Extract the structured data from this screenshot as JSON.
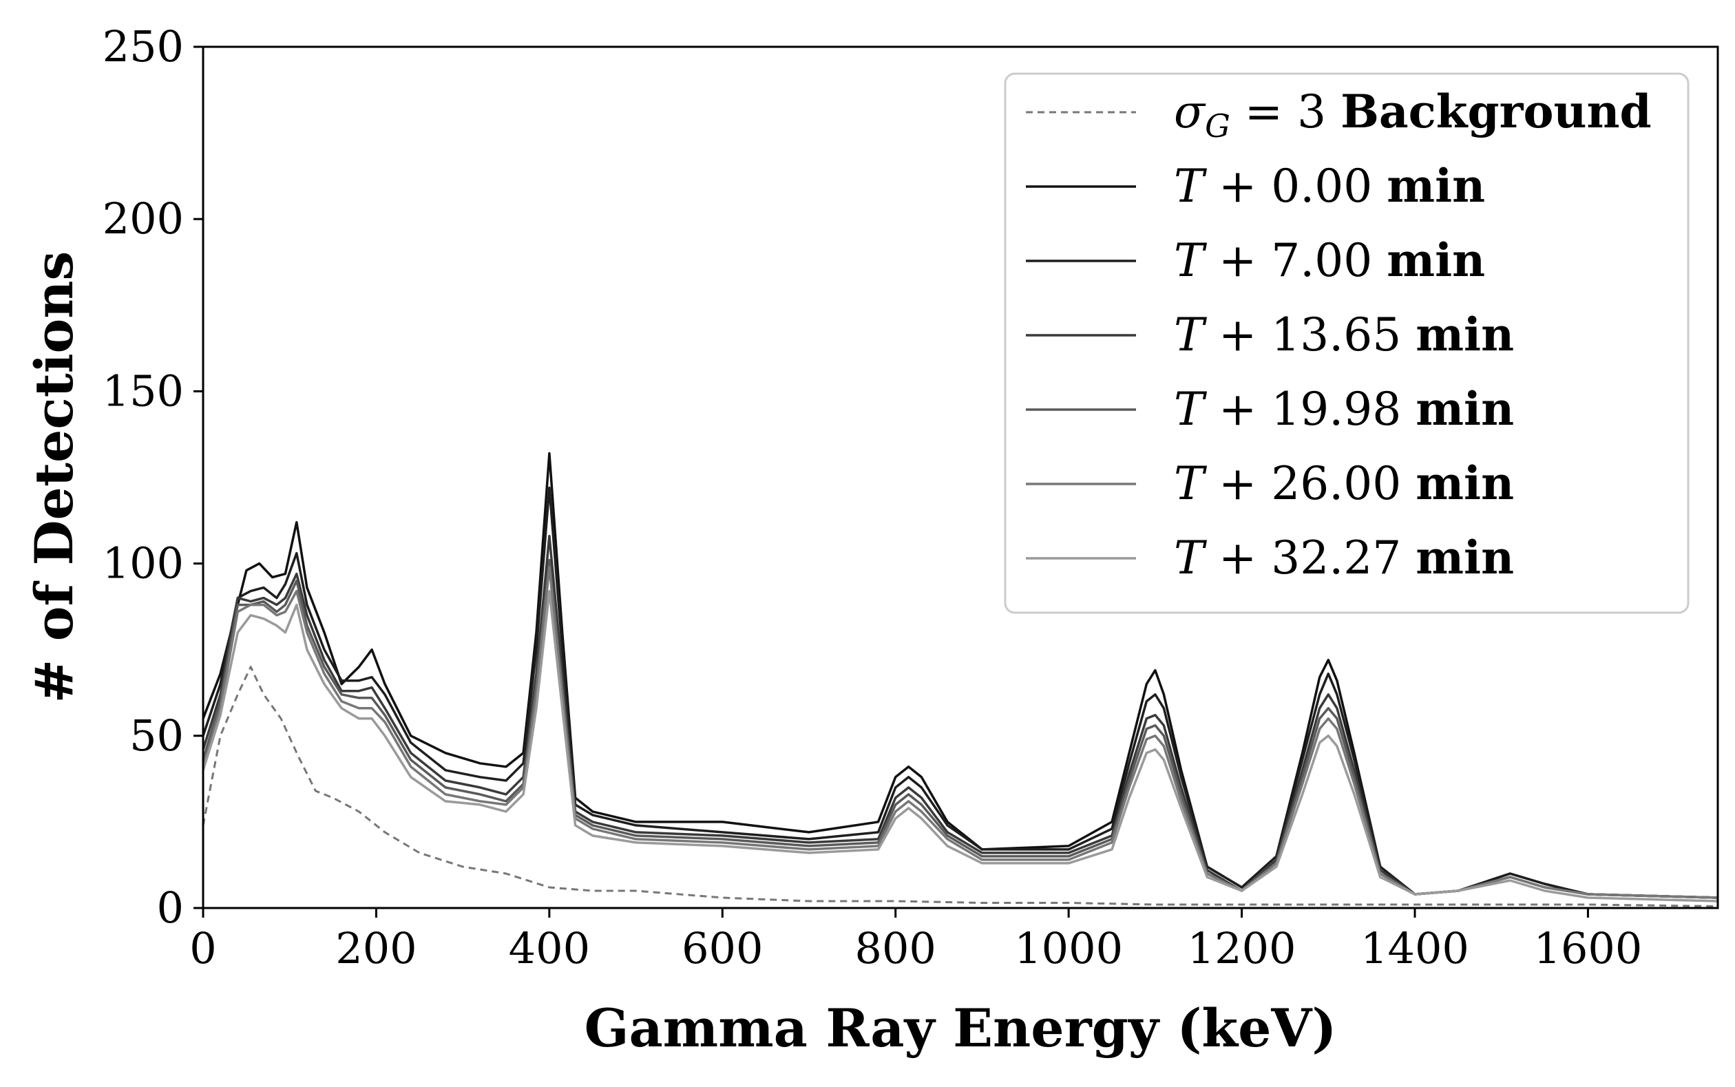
{
  "chart_data": {
    "type": "line",
    "xlabel": "Gamma Ray Energy (keV)",
    "ylabel": "# of Detections",
    "xlim": [
      0,
      1750
    ],
    "ylim": [
      0,
      250
    ],
    "xticks": [
      0,
      200,
      400,
      600,
      800,
      1000,
      1200,
      1400,
      1600
    ],
    "yticks": [
      0,
      50,
      100,
      150,
      200,
      250
    ],
    "grid": false,
    "legend_position": "top-right",
    "series": [
      {
        "name_var": "σ",
        "name_sub": "G",
        "name_rest": " = 3",
        "name_bold": "Background",
        "color": "#777777",
        "dashed": true,
        "x": [
          0,
          20,
          40,
          55,
          70,
          90,
          110,
          130,
          150,
          180,
          210,
          250,
          300,
          350,
          400,
          450,
          500,
          600,
          700,
          800,
          900,
          1000,
          1100,
          1200,
          1300,
          1400,
          1500,
          1600,
          1750
        ],
        "y": [
          24,
          50,
          62,
          70,
          62,
          55,
          44,
          34,
          32,
          28,
          22,
          16,
          12,
          10,
          6,
          5,
          5,
          3,
          2,
          2,
          1.5,
          1.5,
          1,
          1,
          1,
          1,
          1,
          1,
          0.5
        ]
      },
      {
        "name_prefix": "T",
        "name_rest": " + 0.00 ",
        "name_bold": "min",
        "color": "#111111",
        "dashed": false,
        "x": [
          0,
          20,
          40,
          50,
          65,
          80,
          95,
          108,
          120,
          140,
          160,
          180,
          195,
          210,
          240,
          280,
          320,
          350,
          370,
          385,
          400,
          415,
          430,
          450,
          500,
          600,
          700,
          780,
          800,
          815,
          830,
          860,
          900,
          1000,
          1050,
          1070,
          1090,
          1100,
          1110,
          1130,
          1160,
          1200,
          1240,
          1270,
          1290,
          1300,
          1310,
          1330,
          1360,
          1400,
          1450,
          1510,
          1550,
          1600,
          1750
        ],
        "y": [
          55,
          68,
          88,
          98,
          100,
          96,
          97,
          112,
          93,
          80,
          65,
          70,
          75,
          65,
          50,
          45,
          42,
          41,
          45,
          80,
          132,
          80,
          32,
          28,
          25,
          25,
          22,
          25,
          38,
          41,
          38,
          25,
          17,
          18,
          25,
          45,
          65,
          69,
          62,
          40,
          12,
          6,
          15,
          45,
          67,
          72,
          66,
          45,
          12,
          4,
          5,
          10,
          7,
          4,
          3
        ]
      },
      {
        "name_prefix": "T",
        "name_rest": " + 7.00 ",
        "name_bold": "min",
        "color": "#1e1e1e",
        "dashed": false,
        "x": [
          0,
          20,
          40,
          55,
          70,
          85,
          95,
          108,
          120,
          140,
          160,
          180,
          195,
          210,
          240,
          280,
          320,
          350,
          370,
          385,
          400,
          415,
          430,
          450,
          500,
          600,
          700,
          780,
          800,
          815,
          830,
          860,
          900,
          1000,
          1050,
          1070,
          1090,
          1100,
          1110,
          1130,
          1160,
          1200,
          1240,
          1270,
          1290,
          1300,
          1310,
          1330,
          1360,
          1400,
          1450,
          1510,
          1550,
          1600,
          1750
        ],
        "y": [
          50,
          65,
          90,
          92,
          93,
          90,
          94,
          103,
          88,
          75,
          66,
          66,
          67,
          62,
          48,
          40,
          38,
          37,
          42,
          75,
          122,
          75,
          30,
          27,
          24,
          22,
          20,
          22,
          35,
          38,
          35,
          24,
          17,
          17,
          23,
          42,
          60,
          62,
          58,
          38,
          12,
          6,
          15,
          43,
          62,
          68,
          62,
          43,
          12,
          4,
          5,
          10,
          7,
          4,
          3
        ]
      },
      {
        "name_prefix": "T",
        "name_rest": " + 13.65 ",
        "name_bold": "min",
        "color": "#3a3a3a",
        "dashed": false,
        "x": [
          0,
          20,
          40,
          55,
          70,
          85,
          95,
          108,
          120,
          140,
          160,
          180,
          195,
          210,
          240,
          280,
          320,
          350,
          370,
          385,
          400,
          415,
          430,
          450,
          500,
          600,
          700,
          780,
          800,
          815,
          830,
          860,
          900,
          1000,
          1050,
          1070,
          1090,
          1100,
          1110,
          1130,
          1160,
          1200,
          1240,
          1270,
          1290,
          1300,
          1310,
          1330,
          1360,
          1400,
          1450,
          1510,
          1550,
          1600,
          1750
        ],
        "y": [
          46,
          62,
          90,
          89,
          90,
          88,
          90,
          97,
          85,
          72,
          63,
          63,
          64,
          58,
          45,
          37,
          35,
          33,
          38,
          68,
          108,
          68,
          28,
          25,
          22,
          21,
          19,
          20,
          32,
          35,
          32,
          22,
          16,
          16,
          21,
          39,
          55,
          56,
          53,
          35,
          11,
          5,
          14,
          40,
          58,
          62,
          58,
          40,
          11,
          4,
          5,
          9,
          6,
          4,
          3
        ]
      },
      {
        "name_prefix": "T",
        "name_rest": " + 19.98 ",
        "name_bold": "min",
        "color": "#5a5a5a",
        "dashed": false,
        "x": [
          0,
          20,
          40,
          55,
          70,
          85,
          95,
          108,
          120,
          140,
          160,
          180,
          195,
          210,
          240,
          280,
          320,
          350,
          370,
          385,
          400,
          415,
          430,
          450,
          500,
          600,
          700,
          780,
          800,
          815,
          830,
          860,
          900,
          1000,
          1050,
          1070,
          1090,
          1100,
          1110,
          1130,
          1160,
          1200,
          1240,
          1270,
          1290,
          1300,
          1310,
          1330,
          1360,
          1400,
          1450,
          1510,
          1550,
          1600,
          1750
        ],
        "y": [
          43,
          60,
          88,
          88,
          89,
          86,
          88,
          95,
          82,
          70,
          62,
          61,
          61,
          56,
          43,
          35,
          33,
          31,
          36,
          65,
          101,
          64,
          27,
          24,
          21,
          20,
          18,
          19,
          30,
          33,
          30,
          21,
          15,
          15,
          20,
          37,
          52,
          53,
          50,
          33,
          10,
          5,
          13,
          38,
          55,
          58,
          55,
          38,
          10,
          4,
          5,
          9,
          6,
          4,
          3
        ]
      },
      {
        "name_prefix": "T",
        "name_rest": " + 26.00 ",
        "name_bold": "min",
        "color": "#777777",
        "dashed": false,
        "x": [
          0,
          20,
          40,
          55,
          70,
          85,
          95,
          108,
          120,
          140,
          160,
          180,
          195,
          210,
          240,
          280,
          320,
          350,
          370,
          385,
          400,
          415,
          430,
          450,
          500,
          600,
          700,
          780,
          800,
          815,
          830,
          860,
          900,
          1000,
          1050,
          1070,
          1090,
          1100,
          1110,
          1130,
          1160,
          1200,
          1240,
          1270,
          1290,
          1300,
          1310,
          1330,
          1360,
          1400,
          1450,
          1510,
          1550,
          1600,
          1750
        ],
        "y": [
          41,
          58,
          86,
          88,
          88,
          85,
          86,
          92,
          80,
          68,
          60,
          58,
          58,
          54,
          41,
          33,
          31,
          30,
          35,
          62,
          99,
          62,
          26,
          23,
          20,
          19,
          17,
          18,
          28,
          31,
          28,
          20,
          14,
          14,
          19,
          35,
          49,
          50,
          47,
          31,
          10,
          5,
          13,
          36,
          52,
          55,
          52,
          36,
          10,
          4,
          5,
          9,
          6,
          4,
          3
        ]
      },
      {
        "name_prefix": "T",
        "name_rest": " + 32.27 ",
        "name_bold": "min",
        "color": "#9a9a9a",
        "dashed": false,
        "x": [
          0,
          20,
          40,
          55,
          70,
          85,
          95,
          108,
          120,
          140,
          160,
          180,
          195,
          210,
          240,
          280,
          320,
          350,
          370,
          385,
          400,
          415,
          430,
          450,
          500,
          600,
          700,
          780,
          800,
          815,
          830,
          860,
          900,
          1000,
          1050,
          1070,
          1090,
          1100,
          1110,
          1130,
          1160,
          1200,
          1240,
          1270,
          1290,
          1300,
          1310,
          1330,
          1360,
          1400,
          1450,
          1510,
          1550,
          1600,
          1750
        ],
        "y": [
          40,
          56,
          80,
          85,
          84,
          82,
          80,
          88,
          75,
          65,
          58,
          55,
          55,
          50,
          38,
          31,
          30,
          28,
          33,
          58,
          92,
          58,
          24,
          21,
          19,
          18,
          16,
          17,
          26,
          29,
          26,
          18,
          13,
          13,
          17,
          32,
          45,
          46,
          43,
          29,
          9,
          5,
          12,
          33,
          48,
          50,
          47,
          33,
          9,
          4,
          5,
          8,
          5,
          3,
          2
        ]
      }
    ]
  }
}
